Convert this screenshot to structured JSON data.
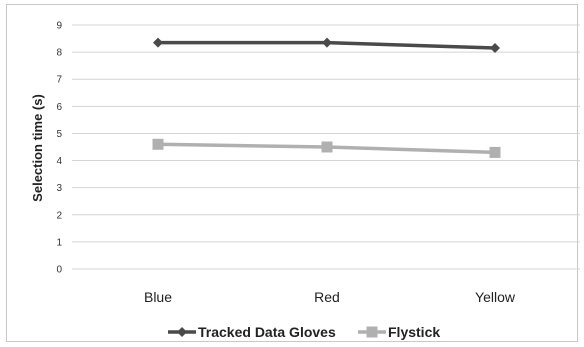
{
  "chart_data": {
    "type": "line",
    "title": "",
    "xlabel": "",
    "ylabel": "Selection time (s)",
    "categories": [
      "Blue",
      "Red",
      "Yellow"
    ],
    "ylim": [
      0,
      9
    ],
    "yticks": [
      "0",
      "1",
      "2",
      "3",
      "4",
      "5",
      "6",
      "7",
      "8",
      "9"
    ],
    "grid": true,
    "legend_position": "bottom",
    "series": [
      {
        "name": "Tracked Data Gloves",
        "values": [
          8.35,
          8.35,
          8.15
        ],
        "color": "#4a4a4a",
        "marker": "diamond"
      },
      {
        "name": "Flystick",
        "values": [
          4.6,
          4.5,
          4.3
        ],
        "color": "#b0b0b0",
        "marker": "square"
      }
    ]
  }
}
